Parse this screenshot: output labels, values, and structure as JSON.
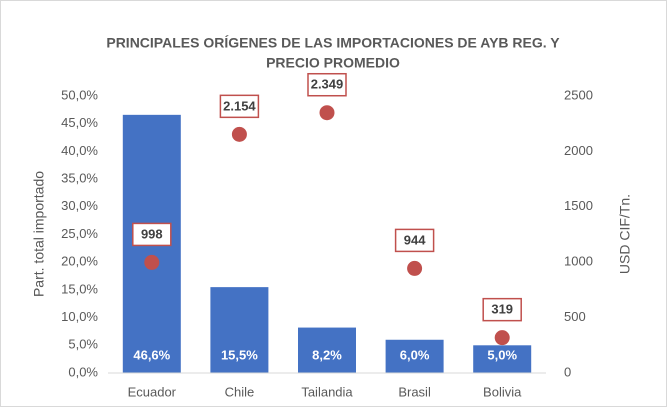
{
  "chart_data": {
    "type": "bar",
    "title": [
      "PRINCIPALES ORÍGENES DE LAS IMPORTACIONES DE AYB REG. Y",
      "PRECIO PROMEDIO"
    ],
    "ylabel": "Part. total importado",
    "y2label": "USD CIF/Tn.",
    "categories": [
      "Ecuador",
      "Chile",
      "Tailandia",
      "Brasil",
      "Bolivia"
    ],
    "series": [
      {
        "type": "bar",
        "color": "#4472c4",
        "values": [
          46.6,
          15.5,
          8.2,
          6.0,
          5.0
        ],
        "value_labels": [
          "46,6%",
          "15,5%",
          "8,2%",
          "6,0%",
          "5,0%"
        ]
      },
      {
        "type": "scatter",
        "axis": "y2",
        "color": "#c0504d",
        "values": [
          998,
          2154,
          2349,
          944,
          319
        ],
        "value_labels": [
          "998",
          "2.154",
          "2.349",
          "944",
          "319"
        ]
      }
    ],
    "ylim": [
      0,
      50
    ],
    "yticks": [
      {
        "value": 0,
        "label": "0,0%"
      },
      {
        "value": 5,
        "label": "5,0%"
      },
      {
        "value": 10,
        "label": "10,0%"
      },
      {
        "value": 15,
        "label": "15,0%"
      },
      {
        "value": 20,
        "label": "20,0%"
      },
      {
        "value": 25,
        "label": "25,0%"
      },
      {
        "value": 30,
        "label": "30,0%"
      },
      {
        "value": 35,
        "label": "35,0%"
      },
      {
        "value": 40,
        "label": "40,0%"
      },
      {
        "value": 45,
        "label": "45,0%"
      },
      {
        "value": 50,
        "label": "50,0%"
      }
    ],
    "y2lim": [
      0,
      2500
    ],
    "y2ticks": [
      0,
      500,
      1000,
      1500,
      2000,
      2500
    ],
    "grid": false
  }
}
